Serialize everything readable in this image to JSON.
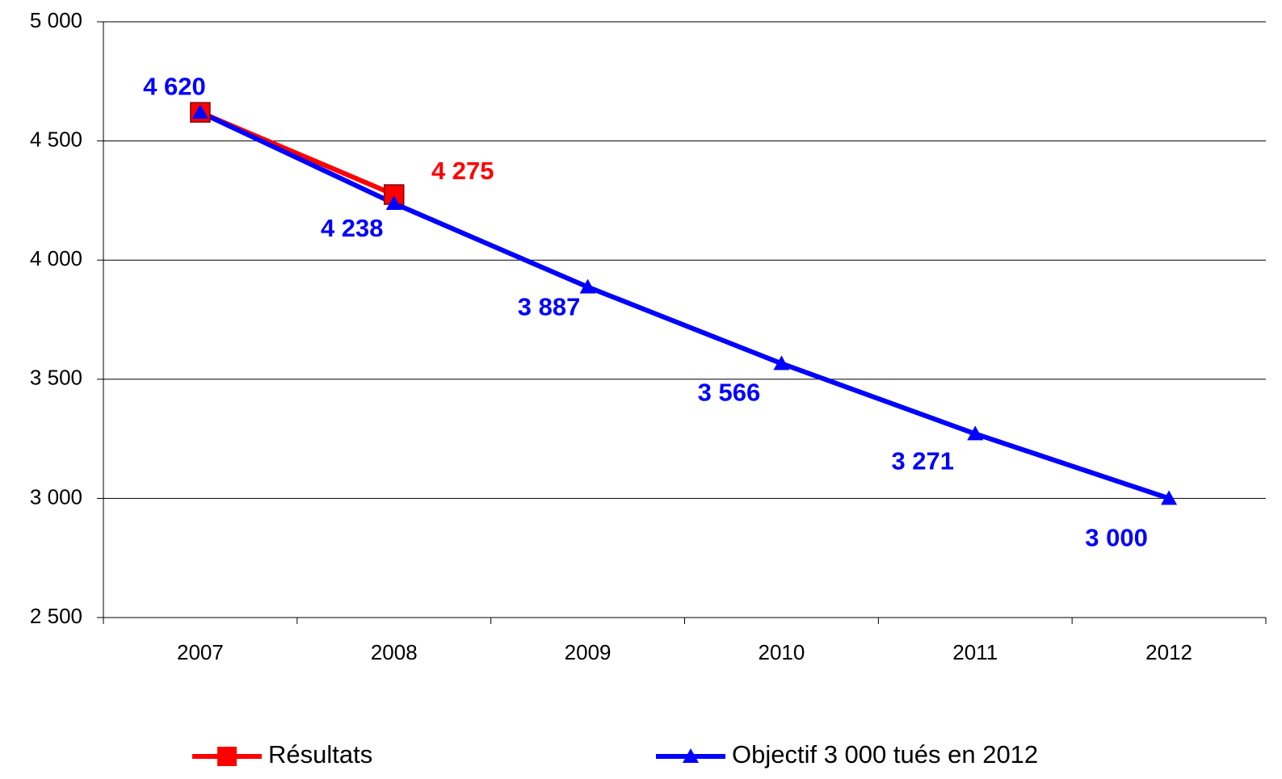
{
  "chart_data": {
    "type": "line",
    "categories": [
      "2007",
      "2008",
      "2009",
      "2010",
      "2011",
      "2012"
    ],
    "series": [
      {
        "name": "Résultats",
        "color": "#ff0000",
        "marker": "square",
        "values": [
          4620,
          4275,
          null,
          null,
          null,
          null
        ],
        "value_labels": [
          null,
          "4 275",
          null,
          null,
          null,
          null
        ]
      },
      {
        "name": "Objectif 3 000 tués en 2012",
        "color": "#0000ff",
        "marker": "triangle",
        "values": [
          4620,
          4238,
          3887,
          3566,
          3271,
          3000
        ],
        "value_labels": [
          "4 620",
          "4 238",
          "3 887",
          "3 566",
          "3 271",
          "3 000"
        ]
      }
    ],
    "ylim": [
      2500,
      5000
    ],
    "yticks": [
      {
        "value": 2500,
        "label": "2 500"
      },
      {
        "value": 3000,
        "label": "3 000"
      },
      {
        "value": 3500,
        "label": "3 500"
      },
      {
        "value": 4000,
        "label": "4 000"
      },
      {
        "value": 4500,
        "label": "4 500"
      },
      {
        "value": 5000,
        "label": "5 000"
      }
    ],
    "grid": true,
    "legend": "bottom"
  }
}
